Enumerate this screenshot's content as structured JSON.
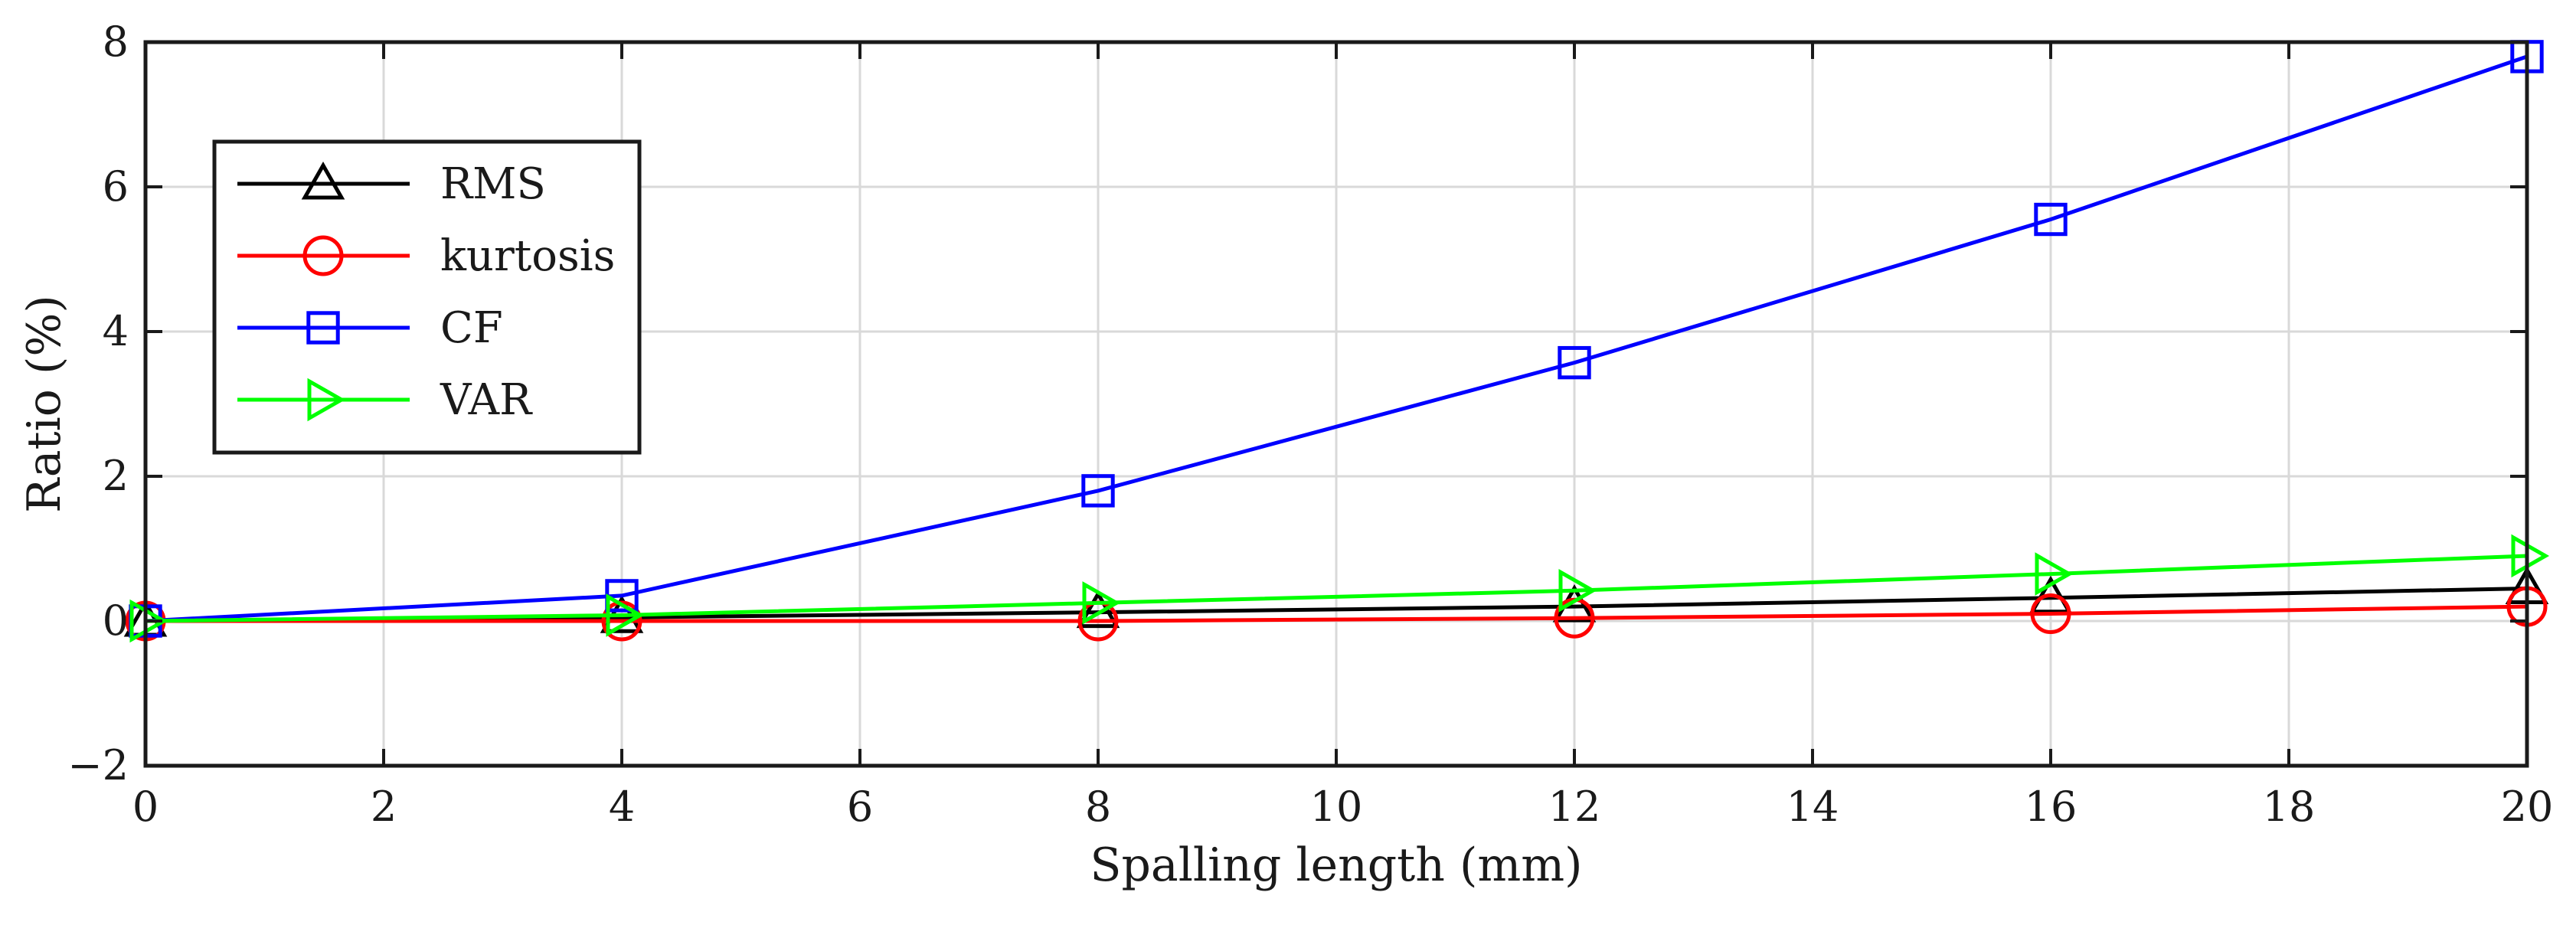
{
  "chart_data": {
    "type": "line",
    "xlabel": "Spalling length (mm)",
    "ylabel": "Ratio (%)",
    "xlim": [
      0,
      20
    ],
    "ylim": [
      -2,
      8
    ],
    "xticks": [
      0,
      2,
      4,
      6,
      8,
      10,
      12,
      14,
      16,
      18,
      20
    ],
    "yticks": [
      -2,
      0,
      2,
      4,
      6,
      8
    ],
    "grid": true,
    "legend_position": "upper-left",
    "x": [
      0,
      4,
      8,
      12,
      16,
      20
    ],
    "series": [
      {
        "name": "RMS",
        "marker": "triangle-up",
        "color": "#000000",
        "values": [
          0,
          0.05,
          0.12,
          0.2,
          0.32,
          0.45
        ]
      },
      {
        "name": "kurtosis",
        "marker": "circle",
        "color": "#ff0000",
        "values": [
          0,
          0.0,
          0.0,
          0.04,
          0.1,
          0.2
        ]
      },
      {
        "name": "CF",
        "marker": "square",
        "color": "#0000ff",
        "values": [
          0,
          0.35,
          1.8,
          3.57,
          5.55,
          7.8
        ]
      },
      {
        "name": "VAR",
        "marker": "triangle-right",
        "color": "#00ff00",
        "values": [
          0,
          0.08,
          0.25,
          0.42,
          0.65,
          0.9
        ]
      }
    ]
  }
}
